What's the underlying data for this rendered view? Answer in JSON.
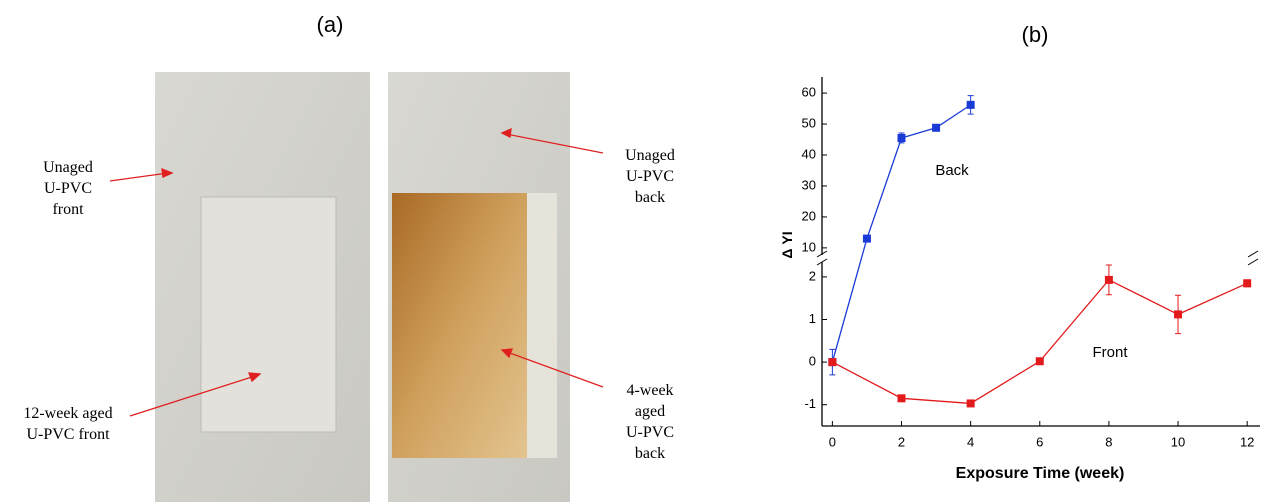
{
  "panel_a": {
    "label": "(a)",
    "annotations": [
      {
        "lines": [
          "Unaged",
          "U-PVC",
          "front"
        ]
      },
      {
        "lines": [
          "12-week aged",
          "U-PVC front"
        ]
      },
      {
        "lines": [
          "Unaged",
          "U-PVC",
          "back"
        ]
      },
      {
        "lines": [
          "4-week",
          "aged",
          "U-PVC",
          "back"
        ]
      }
    ]
  },
  "chart_data": {
    "type": "line",
    "label": "(b)",
    "xlabel": "Exposure Time (week)",
    "ylabel": "Δ YI",
    "xlim": [
      -0.3,
      12.4
    ],
    "xticks": [
      0,
      2,
      4,
      6,
      8,
      10,
      12
    ],
    "ylim": [
      -1.5,
      65.2
    ],
    "ybreak": [
      2.35,
      7.7
    ],
    "yticks": [
      -1,
      0,
      1,
      2,
      10,
      20,
      30,
      40,
      50,
      60
    ],
    "annotations": [
      "Back",
      "Front"
    ],
    "series": [
      {
        "color": "#1a3ad6",
        "x": [
          0,
          1,
          2,
          3,
          4
        ],
        "values": [
          0,
          13,
          45.5,
          48.8,
          56.2
        ],
        "errors": [
          0.3,
          0.6,
          1.6,
          1,
          3
        ]
      },
      {
        "color": "#e31a1c",
        "x": [
          0,
          2,
          4,
          6,
          8,
          10,
          12
        ],
        "values": [
          0,
          -0.85,
          -0.97,
          0.02,
          1.93,
          1.12,
          1.85
        ],
        "errors": [
          0.03,
          0.06,
          0.03,
          0.03,
          0.35,
          0.45,
          0.08
        ]
      }
    ]
  }
}
